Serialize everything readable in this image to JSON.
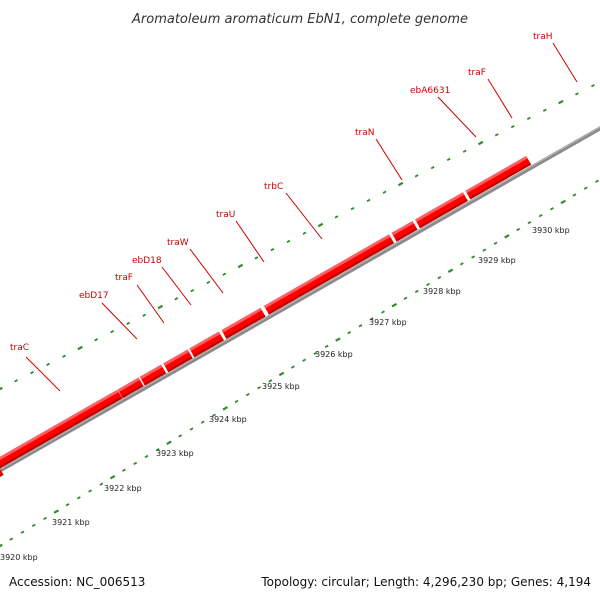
{
  "title": "Aromatoleum aromaticum EbN1, complete genome",
  "footer": {
    "accession": "Accession: NC_006513",
    "info": "Topology: circular; Length: 4,296,230 bp; Genes: 4,194"
  },
  "colors": {
    "gene_red": "#ff0000",
    "gene_red_light": "#ff7070",
    "gene_red_dark": "#b80000",
    "gene_green": "#99ff00",
    "gene_green_light": "#d6ff8a",
    "gene_green_dark": "#66b000",
    "label_red": "#cc0000",
    "backbone_gray": "#8a8a8a",
    "tick_green": "#2e8b2e"
  },
  "gene_labels": [
    {
      "name": "traC"
    },
    {
      "name": "ebD17"
    },
    {
      "name": "traF"
    },
    {
      "name": "ebD18"
    },
    {
      "name": "traW"
    },
    {
      "name": "traU"
    },
    {
      "name": "trbC"
    },
    {
      "name": "traN"
    },
    {
      "name": "ebA6631"
    },
    {
      "name": "traF"
    },
    {
      "name": "traH"
    }
  ],
  "kbp_labels": [
    "3920 kbp",
    "3921 kbp",
    "3922 kbp",
    "3923 kbp",
    "3924 kbp",
    "3925 kbp",
    "3926 kbp",
    "3927 kbp",
    "3928 kbp",
    "3929 kbp",
    "3930 kbp"
  ]
}
